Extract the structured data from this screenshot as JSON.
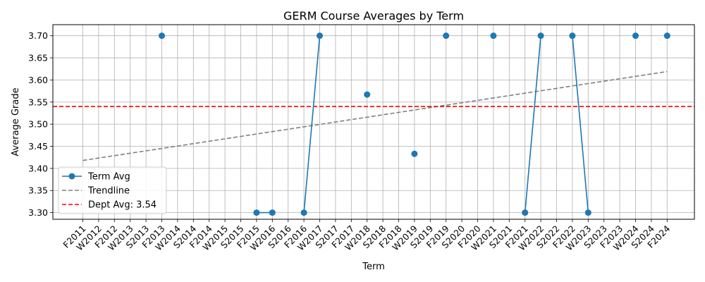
{
  "chart_data": {
    "type": "line",
    "title": "GERM Course Averages by Term",
    "xlabel": "Term",
    "ylabel": "Average Grade",
    "ylim": [
      3.285,
      3.725
    ],
    "yticks": [
      3.3,
      3.35,
      3.4,
      3.45,
      3.5,
      3.55,
      3.6,
      3.65,
      3.7
    ],
    "grid": true,
    "legend_placement": "lower-left",
    "categories": [
      "F2011",
      "W2012",
      "F2012",
      "W2013",
      "S2013",
      "F2013",
      "W2014",
      "S2014",
      "F2014",
      "W2015",
      "S2015",
      "F2015",
      "W2016",
      "S2016",
      "F2016",
      "W2017",
      "S2017",
      "F2017",
      "W2018",
      "S2018",
      "F2018",
      "W2019",
      "S2019",
      "F2019",
      "S2020",
      "F2020",
      "W2021",
      "S2021",
      "F2021",
      "W2022",
      "S2022",
      "F2022",
      "W2023",
      "S2023",
      "F2023",
      "W2024",
      "S2024",
      "F2024"
    ],
    "series": [
      {
        "name": "Term Avg",
        "kind": "line-markers",
        "color": "#1f77b4",
        "points": [
          {
            "x": "F2013",
            "y": 3.7
          },
          {
            "x": "F2015",
            "y": 3.3
          },
          {
            "x": "W2016",
            "y": 3.3
          },
          {
            "x": "F2016",
            "y": 3.3
          },
          {
            "x": "W2017",
            "y": 3.7
          },
          {
            "x": "W2018",
            "y": 3.567
          },
          {
            "x": "W2019",
            "y": 3.433
          },
          {
            "x": "F2019",
            "y": 3.7
          },
          {
            "x": "W2021",
            "y": 3.7
          },
          {
            "x": "F2021",
            "y": 3.3
          },
          {
            "x": "W2022",
            "y": 3.7
          },
          {
            "x": "F2022",
            "y": 3.7
          },
          {
            "x": "W2023",
            "y": 3.3
          },
          {
            "x": "W2024",
            "y": 3.7
          },
          {
            "x": "F2024",
            "y": 3.7
          }
        ],
        "segments": [
          [
            "F2015",
            "W2016"
          ],
          [
            "F2016",
            "W2017"
          ],
          [
            "F2021",
            "W2022"
          ],
          [
            "F2022",
            "W2023"
          ]
        ]
      },
      {
        "name": "Trendline",
        "kind": "dashed-line",
        "color": "#808080",
        "start": {
          "x": "F2011",
          "y": 3.418
        },
        "end": {
          "x": "F2024",
          "y": 3.619
        }
      },
      {
        "name": "Dept Avg: 3.54",
        "kind": "horizontal-line",
        "color": "#ff0000",
        "y": 3.54
      }
    ]
  }
}
